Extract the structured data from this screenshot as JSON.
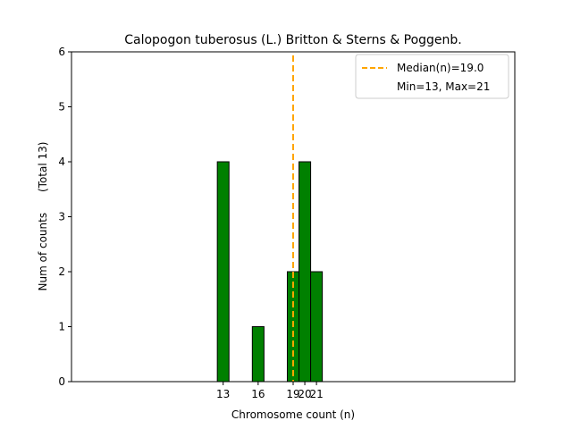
{
  "chart_data": {
    "type": "bar",
    "title": "Calopogon tuberosus (L.) Britton & Sterns & Poggenb.",
    "xlabel": "Chromosome count (n)",
    "ylabel": "Num of counts      (Total 13)",
    "xlim": [
      0,
      38
    ],
    "ylim": [
      0,
      6
    ],
    "yticks": [
      0,
      1,
      2,
      3,
      4,
      5,
      6
    ],
    "xticks": [
      13,
      16,
      19,
      20,
      21
    ],
    "bar_width": 1,
    "bars": [
      {
        "x": 13,
        "value": 4
      },
      {
        "x": 16,
        "value": 1
      },
      {
        "x": 19,
        "value": 2
      },
      {
        "x": 20,
        "value": 4
      },
      {
        "x": 21,
        "value": 2
      }
    ],
    "median_line": {
      "x": 19.0,
      "color": "#FFA500"
    },
    "legend": {
      "placement": "top-right",
      "entries": [
        "Median(n)=19.0",
        "Min=13, Max=21"
      ]
    },
    "colors": {
      "bar_fill": "#008000",
      "bar_edge": "#000000",
      "median": "#FFA500"
    }
  }
}
